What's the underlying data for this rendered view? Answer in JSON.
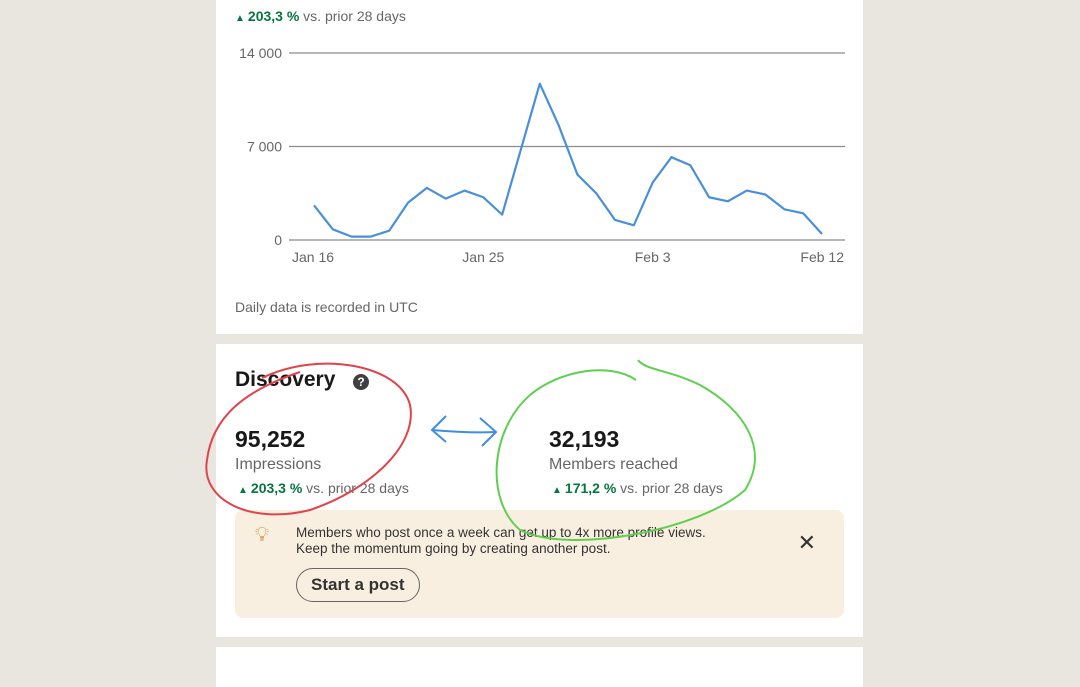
{
  "impressions_card": {
    "label": "Impressions",
    "trend_value": "203,3 %",
    "trend_suffix": "vs. prior 28 days",
    "note": "Daily data is recorded in UTC"
  },
  "chart_data": {
    "type": "line",
    "title": "",
    "xlabel": "",
    "ylabel": "",
    "ylim": [
      0,
      14000
    ],
    "y_ticks": [
      "0",
      "7 000",
      "14 000"
    ],
    "y_tick_values": [
      0,
      7000,
      14000
    ],
    "x_ticks": [
      "Jan 16",
      "Jan 25",
      "Feb 3",
      "Feb 12"
    ],
    "x_tick_index": [
      0,
      9,
      18,
      27
    ],
    "grid": true,
    "color": "#4a90d9",
    "x": [
      "Jan 16",
      "Jan 17",
      "Jan 18",
      "Jan 19",
      "Jan 20",
      "Jan 21",
      "Jan 22",
      "Jan 23",
      "Jan 24",
      "Jan 25",
      "Jan 26",
      "Jan 27",
      "Jan 28",
      "Jan 29",
      "Jan 30",
      "Jan 31",
      "Feb 1",
      "Feb 2",
      "Feb 3",
      "Feb 4",
      "Feb 5",
      "Feb 6",
      "Feb 7",
      "Feb 8",
      "Feb 9",
      "Feb 10",
      "Feb 11",
      "Feb 12"
    ],
    "values": [
      2600,
      800,
      250,
      250,
      700,
      2800,
      3900,
      3100,
      3700,
      3200,
      1900,
      6800,
      11700,
      8600,
      4900,
      3500,
      1500,
      1100,
      4300,
      6200,
      5600,
      3200,
      2900,
      3700,
      3400,
      2300,
      2000,
      450
    ]
  },
  "discovery": {
    "title": "Discovery",
    "help_icon": "?",
    "impressions": {
      "value": "95,252",
      "label": "Impressions",
      "trend_value": "203,3 %",
      "trend_suffix": "vs. prior 28 days"
    },
    "members": {
      "value": "32,193",
      "label": "Members reached",
      "trend_value": "171,2 %",
      "trend_suffix": "vs. prior 28 days"
    },
    "tip": {
      "line1": "Members who post once a week can get up to 4x more profile views.",
      "line2": "Keep the momentum going by creating another post.",
      "button": "Start a post"
    }
  },
  "colors": {
    "positive": "#057642",
    "line": "#4a90d9",
    "annotation_red": "#e0434c",
    "annotation_green": "#5fcf4f",
    "annotation_blue": "#3f8ee0"
  }
}
